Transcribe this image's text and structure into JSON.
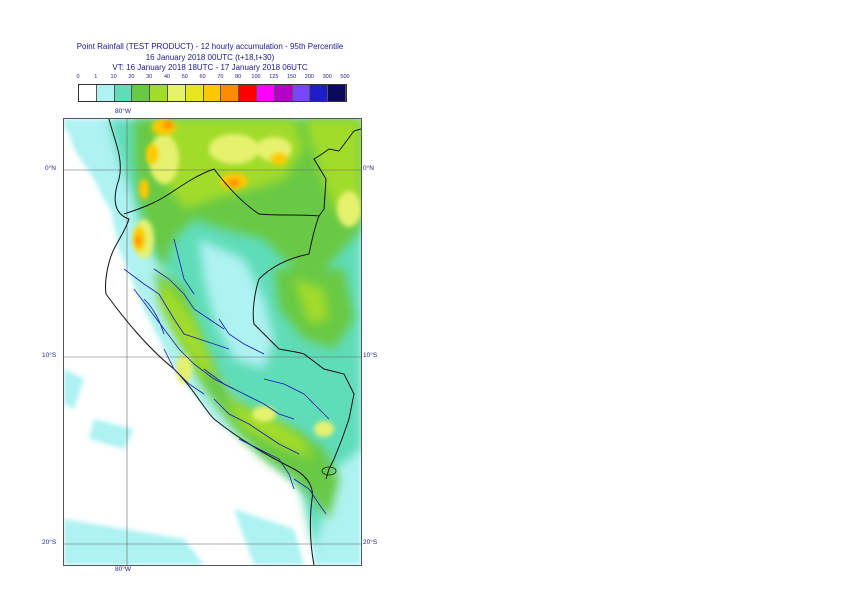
{
  "title": {
    "line1": "Point Rainfall (TEST PRODUCT) - 12 hourly accumulation - 95th Percentile",
    "line2": "16 January 2018 00UTC (t+18,t+30)",
    "line3": "VT: 16 January 2018 18UTC - 17 January 2018 06UTC"
  },
  "legend": {
    "thresholds": [
      "0",
      "1",
      "10",
      "20",
      "30",
      "40",
      "50",
      "60",
      "70",
      "80",
      "100",
      "125",
      "150",
      "200",
      "300",
      "500"
    ],
    "colors": [
      "#ffffff",
      "#aef2f2",
      "#5fdcb8",
      "#69c945",
      "#a2dc2a",
      "#e6f26e",
      "#e6e61e",
      "#ffc800",
      "#ff8c00",
      "#ff0000",
      "#ff00ff",
      "#b400c8",
      "#7846ff",
      "#1e1ec8",
      "#0a0a5a"
    ]
  },
  "map": {
    "lon_labels": {
      "top": "80°W",
      "bottom": "80°W"
    },
    "lat_labels": {
      "eq_left": "0°N",
      "eq_right": "0°N",
      "s10_left": "10°S",
      "s10_right": "10°S",
      "s20_left": "20°S",
      "s20_right": "20°S"
    }
  }
}
